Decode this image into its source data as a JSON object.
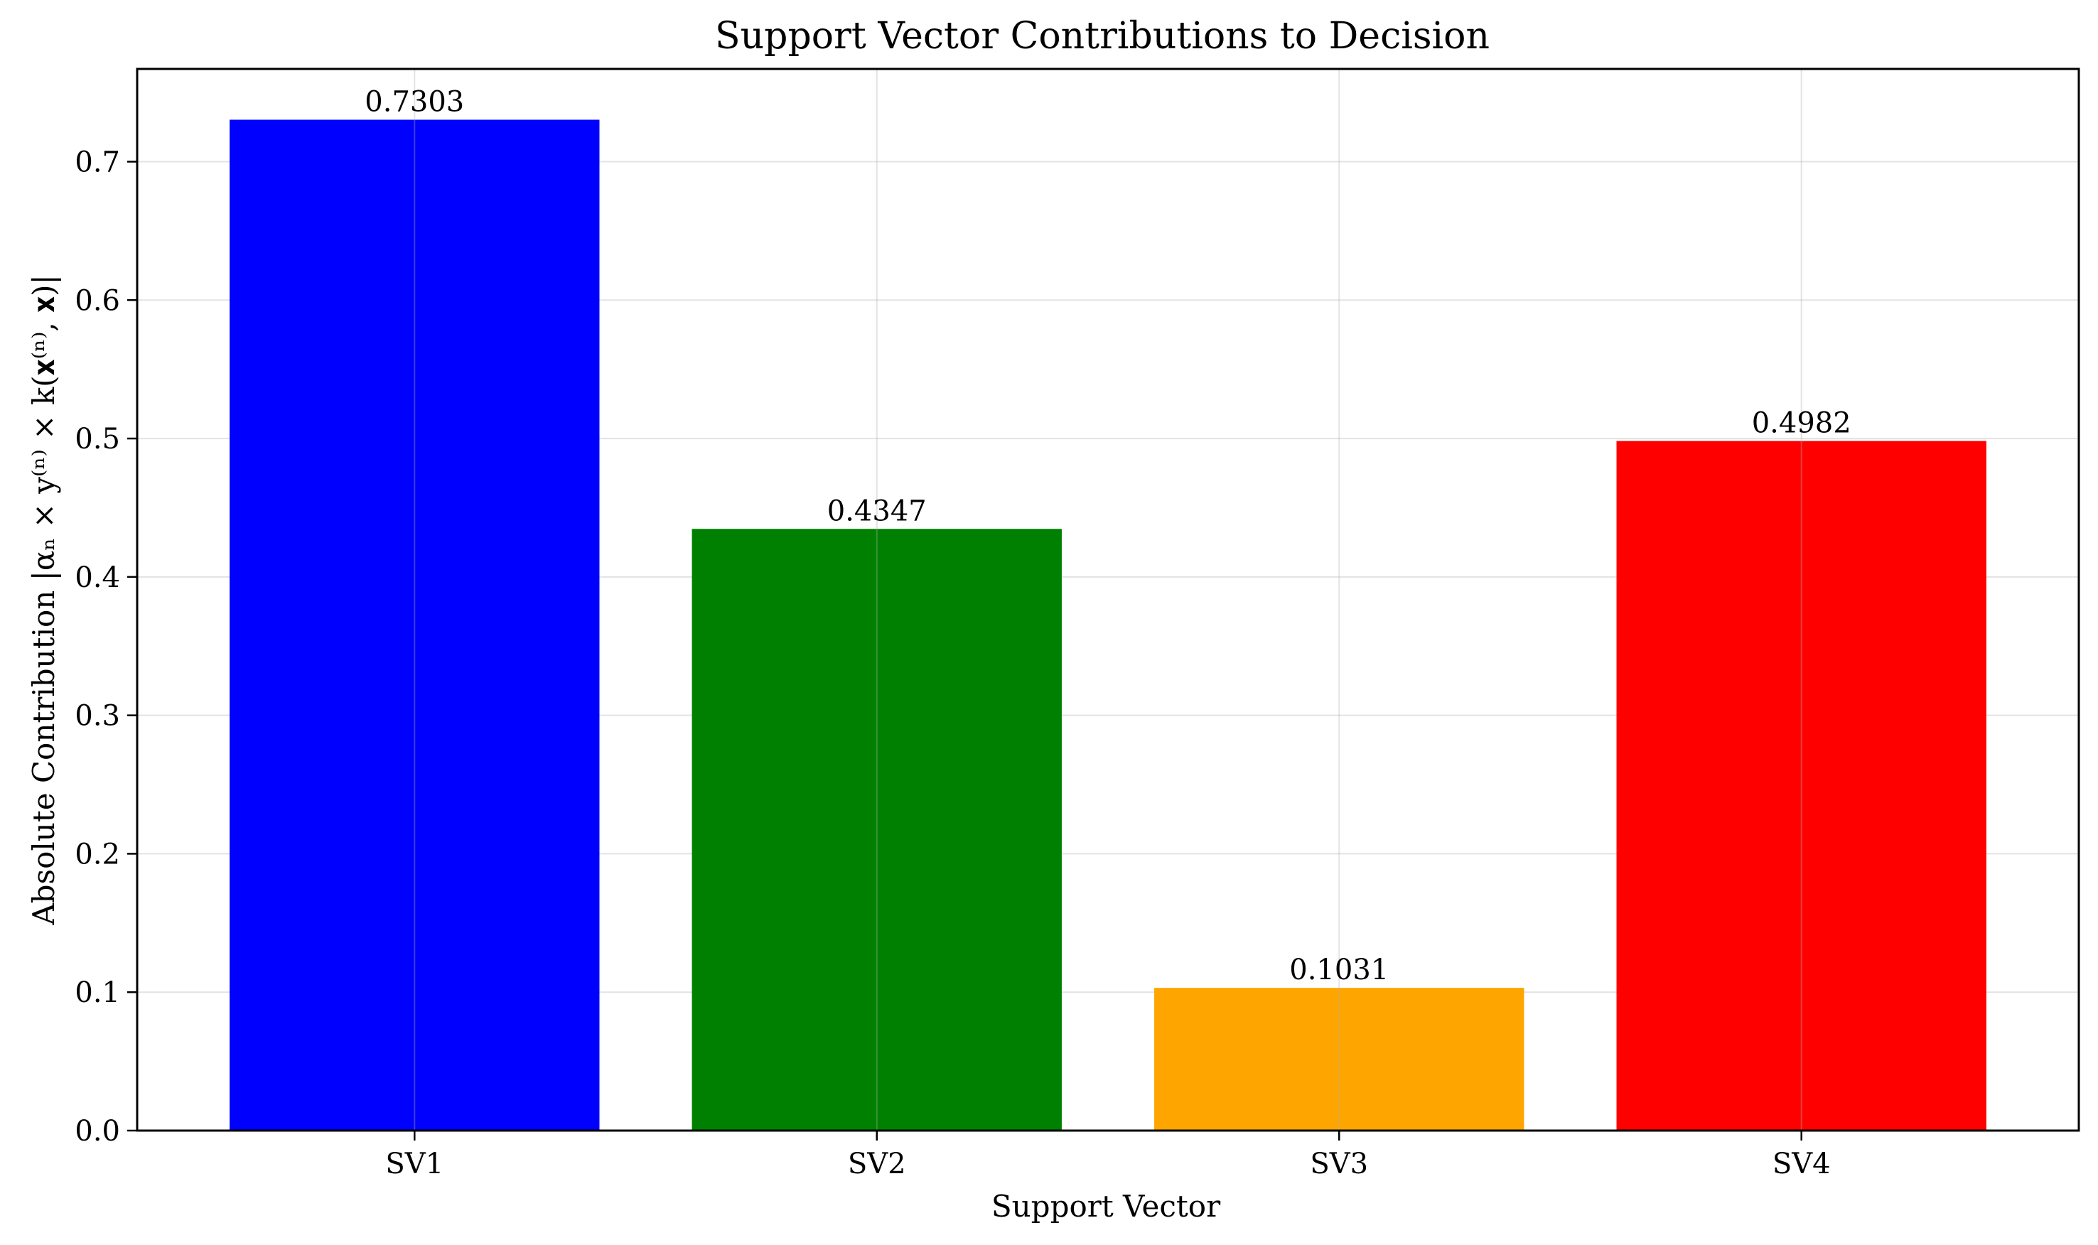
{
  "chart_data": {
    "type": "bar",
    "title": "Support Vector Contributions to Decision",
    "xlabel": "Support Vector",
    "ylabel": "Absolute Contribution |αₙ × y⁽ⁿ⁾ × k(𝐱⁽ⁿ⁾, 𝐱)|",
    "categories": [
      "SV1",
      "SV2",
      "SV3",
      "SV4"
    ],
    "values": [
      0.7303,
      0.4347,
      0.1031,
      0.4982
    ],
    "value_labels": [
      "0.7303",
      "0.4347",
      "0.1031",
      "0.4982"
    ],
    "colors": [
      "#0000ff",
      "#008000",
      "#ffa500",
      "#ff0000"
    ],
    "ylim": [
      0,
      0.767
    ],
    "yticks": [
      0.0,
      0.1,
      0.2,
      0.3,
      0.4,
      0.5,
      0.6,
      0.7
    ],
    "ytick_labels": [
      "0.0",
      "0.1",
      "0.2",
      "0.3",
      "0.4",
      "0.5",
      "0.6",
      "0.7"
    ],
    "grid": true,
    "legend": "none"
  }
}
